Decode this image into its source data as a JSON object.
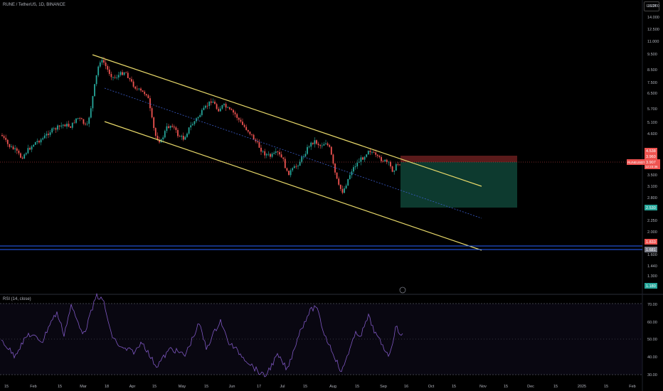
{
  "header": {
    "title": "RUNE / TetherUS, 1D, BINANCE",
    "currency_button": "USDT"
  },
  "rsi": {
    "title": "RSI (14, close)",
    "levels": [
      "70.00",
      "60.00",
      "50.00",
      "40.00",
      "30.00"
    ]
  },
  "colors": {
    "up": "#26a69a",
    "down": "#ef5350",
    "channel": "#e8d96a",
    "midline": "#3a5cc9",
    "support": "#2962ff",
    "rsi_line": "#7e57c2",
    "stop_zone": "#5a1a1a",
    "target_zone": "#0d3a2f"
  },
  "chart_data": {
    "type": "candlestick",
    "scale": "log",
    "y_ticks": [
      "16.000",
      "14.000",
      "12.500",
      "11.000",
      "9.500",
      "8.500",
      "7.500",
      "6.500",
      "5.700",
      "5.100",
      "4.600",
      "3.500",
      "3.100",
      "2.800",
      "2.250",
      "2.000",
      "1.600",
      "1.440",
      "1.300"
    ],
    "x_ticks": [
      "15",
      "Feb",
      "15",
      "Mar",
      "18",
      "Apr",
      "15",
      "May",
      "15",
      "Jun",
      "17",
      "Jul",
      "15",
      "Aug",
      "15",
      "Sep",
      "16",
      "Oct",
      "15",
      "Nov",
      "15",
      "Dec",
      "15",
      "2025",
      "15",
      "Feb"
    ],
    "price_labels": {
      "stop": "4.538",
      "entry": "3.960",
      "ticker": "RUNEUSDT",
      "current": "3.907",
      "countdown": "12:23:36",
      "target": "2.530",
      "support_1": "1.833",
      "support_2": "1.681",
      "low": "1.180"
    }
  }
}
